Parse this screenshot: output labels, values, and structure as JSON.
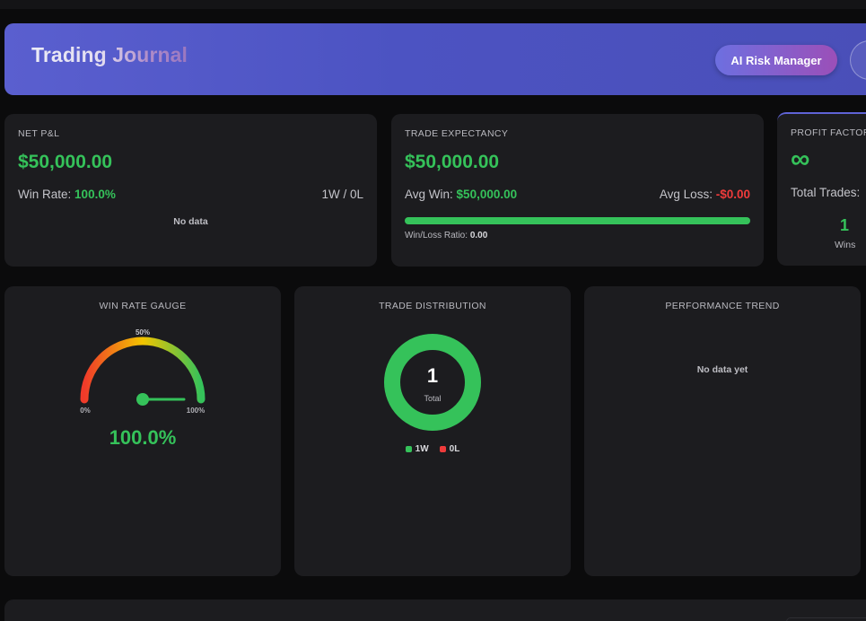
{
  "header": {
    "title": "Trading Journal",
    "ai_button_label": "AI Risk Manager"
  },
  "net_pnl": {
    "label": "NET P&L",
    "value": "$50,000.00",
    "win_rate_label": "Win Rate:",
    "win_rate_value": "100.0%",
    "record": "1W / 0L",
    "empty_text": "No data"
  },
  "trade_expectancy": {
    "label": "TRADE EXPECTANCY",
    "value": "$50,000.00",
    "avg_win_label": "Avg Win:",
    "avg_win_value": "$50,000.00",
    "avg_loss_label": "Avg Loss:",
    "avg_loss_value": "-$0.00",
    "win_bar_fraction": 1.0,
    "ratio_label": "Win/Loss Ratio:",
    "ratio_value": "0.00"
  },
  "profit_factor": {
    "label": "PROFIT FACTOR",
    "value": "∞",
    "total_trades_label": "Total Trades:",
    "wins_count": "1",
    "wins_label": "Wins"
  },
  "win_rate_gauge": {
    "title": "WIN RATE GAUGE",
    "tick_min": "0%",
    "tick_mid": "50%",
    "tick_max": "100%",
    "value_fraction": 1.0,
    "value_text": "100.0%",
    "colors": {
      "low": "#f03a2a",
      "mid": "#f2c400",
      "high": "#35c25a"
    }
  },
  "trade_distribution": {
    "title": "TRADE DISTRIBUTION",
    "total": "1",
    "total_label": "Total",
    "wins": 1,
    "losses": 0,
    "legend_wins": "1W",
    "legend_losses": "0L",
    "colors": {
      "wins": "#35c25a",
      "losses": "#ef3b3b"
    }
  },
  "performance_trend": {
    "title": "PERFORMANCE TREND",
    "empty_text": "No data yet"
  }
}
